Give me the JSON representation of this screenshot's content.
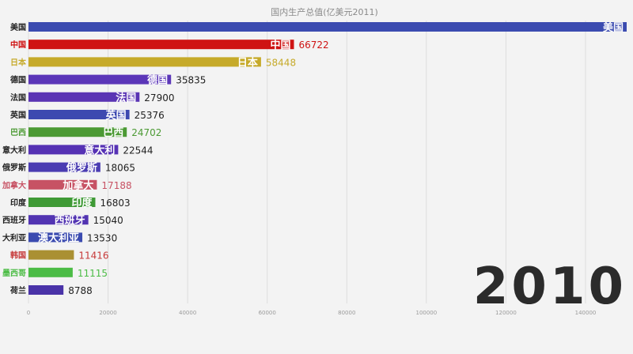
{
  "chart_data": {
    "type": "bar",
    "orientation": "horizontal",
    "title": "国内生产总值(亿美元2011)",
    "year": "2010",
    "xlim": [
      0,
      150000
    ],
    "ticks": [
      0,
      20000,
      40000,
      60000,
      80000,
      100000,
      120000,
      140000
    ],
    "tick_labels": [
      "0",
      "20000",
      "40000",
      "60000",
      "80000",
      "100000",
      "120000",
      "140000"
    ],
    "grid": true,
    "categories": [
      "美国",
      "中国",
      "日本",
      "德国",
      "法国",
      "英国",
      "巴西",
      "意大利",
      "俄罗斯",
      "加拿大",
      "印度",
      "西班牙",
      "大利亚",
      "韩国",
      "墨西哥",
      "荷兰"
    ],
    "inner_labels": [
      "美国",
      "中国",
      "日本",
      "德国",
      "法国",
      "英国",
      "巴西",
      "意大利",
      "俄罗斯",
      "加拿大",
      "印度",
      "西班牙",
      "澳大利亚",
      "",
      "",
      ""
    ],
    "values": [
      151000,
      66722,
      58448,
      35835,
      27900,
      25376,
      24702,
      22544,
      18065,
      17188,
      16803,
      15040,
      13530,
      11416,
      11115,
      8788
    ],
    "value_labels": [
      "",
      "66722",
      "58448",
      "35835",
      "27900",
      "25376",
      "24702",
      "22544",
      "18065",
      "17188",
      "16803",
      "15040",
      "13530",
      "11416",
      "11115",
      "8788"
    ],
    "colors": [
      "#3b4bb0",
      "#cf1313",
      "#c6aa2a",
      "#5b36b8",
      "#5a34b4",
      "#3d49b0",
      "#4c9a34",
      "#5632b4",
      "#4a3cb2",
      "#c75264",
      "#3f9a36",
      "#5234b2",
      "#3b4bb0",
      "#aa9033",
      "#4cbc46",
      "#4a33a8"
    ],
    "category_colors": [
      "#222222",
      "#cf1313",
      "#c6aa2a",
      "#222222",
      "#222222",
      "#222222",
      "#4c9a34",
      "#222222",
      "#222222",
      "#c75264",
      "#222222",
      "#222222",
      "#222222",
      "#c63a3a",
      "#4cbc46",
      "#222222"
    ]
  }
}
